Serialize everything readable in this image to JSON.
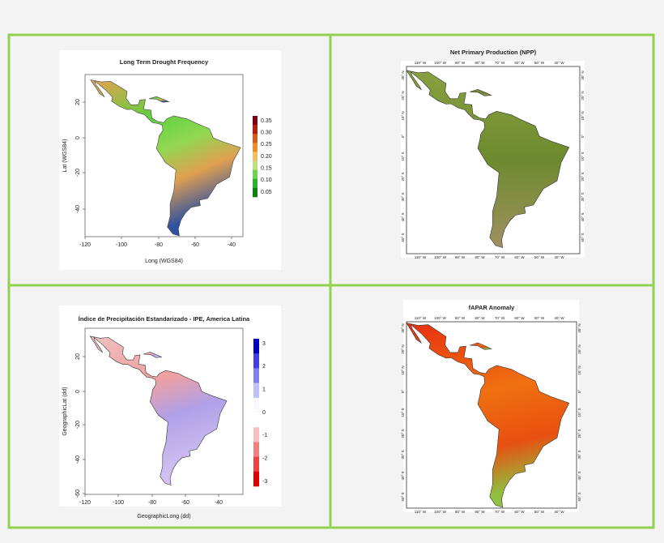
{
  "panels": [
    {
      "title": "Long Term Drought Frequency",
      "x_axis_label": "Long (WGS84)",
      "y_axis_label": "Lat (WGS84)",
      "x_ticks": [
        "-120",
        "-100",
        "-80",
        "-60",
        "-40"
      ],
      "y_ticks": [
        "20",
        "0",
        "-20",
        "-40"
      ],
      "colorbar_labels": [
        "0.35",
        "0.30",
        "0.25",
        "0.20",
        "0.15",
        "0.10",
        "0.05"
      ]
    },
    {
      "title": "Net Primary Production (NPP)",
      "lon_labels": [
        "110° W",
        "100° W",
        "90° W",
        "80° W",
        "70° W",
        "60° W",
        "50° W",
        "40° W"
      ],
      "lat_labels": [
        "30° N",
        "20° N",
        "10° N",
        "0°",
        "10° S",
        "20° S",
        "30° S",
        "40° S",
        "50° S"
      ]
    },
    {
      "title": "Índice de Precipitación Estandarizado - IPE, America Latina",
      "x_axis_label": "GeographicLong (dd)",
      "y_axis_label": "GeographicLat (dd)",
      "x_ticks": [
        "-120",
        "-100",
        "-80",
        "-60",
        "-40"
      ],
      "y_ticks": [
        "20",
        "0",
        "-20",
        "-40",
        "-60"
      ],
      "colorbar_labels": [
        "3",
        "2",
        "1",
        "0",
        "-1",
        "-2",
        "-3"
      ]
    },
    {
      "title": "fAPAR Anomaly",
      "lon_labels": [
        "110° W",
        "100° W",
        "90° W",
        "80° W",
        "70° W",
        "60° W",
        "50° W",
        "40° W"
      ],
      "lat_labels": [
        "30° N",
        "20° N",
        "10° N",
        "0°",
        "10° S",
        "20° S",
        "30° S",
        "40° S",
        "50° S"
      ]
    }
  ]
}
